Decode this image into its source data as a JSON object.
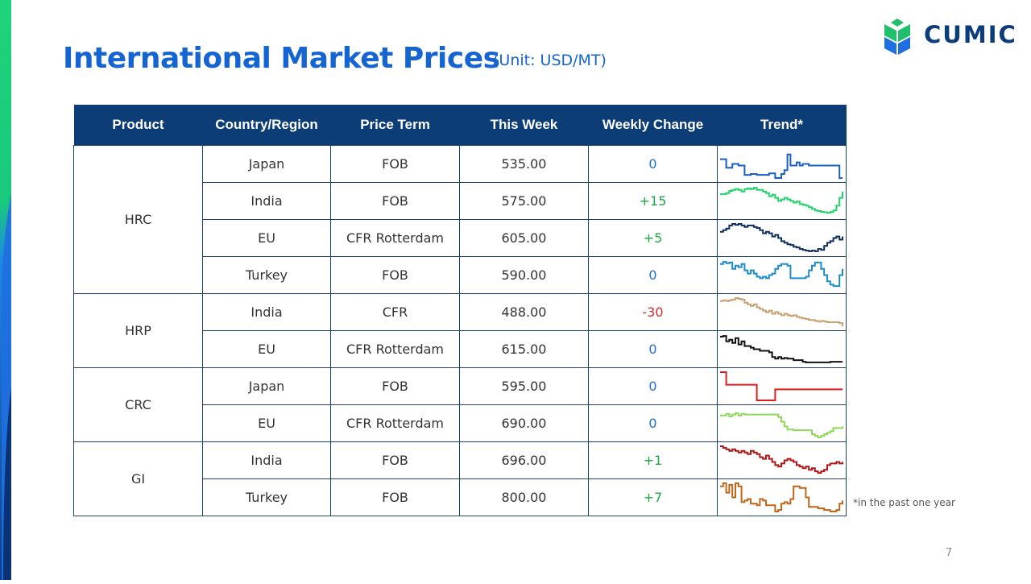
{
  "slide": {
    "title": "International Market Prices",
    "unit": "(Unit: USD/MT)",
    "brand": "CUMIC",
    "footnote": "*in the past one year",
    "page_number": "7"
  },
  "table": {
    "headers": [
      "Product",
      "Country/Region",
      "Price Term",
      "This Week",
      "Weekly Change",
      "Trend*"
    ],
    "groups": [
      {
        "product": "HRC",
        "rows": [
          {
            "country": "Japan",
            "term": "FOB",
            "price": "535.00",
            "change": "0",
            "color": "#1a5fc8",
            "trend": [
              0.35,
              0.35,
              0.62,
              0.62,
              0.5,
              0.5,
              0.55,
              0.55,
              0.85,
              0.85,
              0.82,
              0.82,
              0.85,
              0.85,
              0.85,
              0.85,
              0.8,
              0.8,
              0.95,
              0.95,
              0.82,
              0.7,
              0.2,
              0.55,
              0.55,
              0.45,
              0.55,
              0.5,
              0.5,
              0.55,
              0.55,
              0.55,
              0.55,
              0.55,
              0.55,
              0.55,
              0.55,
              0.55,
              0.55,
              0.95,
              0.95
            ]
          },
          {
            "country": "India",
            "term": "FOB",
            "price": "575.00",
            "change": "+15",
            "color": "#1fd468",
            "trend": [
              0.28,
              0.28,
              0.25,
              0.18,
              0.15,
              0.12,
              0.15,
              0.2,
              0.12,
              0.1,
              0.12,
              0.08,
              0.15,
              0.15,
              0.2,
              0.25,
              0.35,
              0.3,
              0.4,
              0.5,
              0.45,
              0.4,
              0.45,
              0.5,
              0.55,
              0.52,
              0.6,
              0.62,
              0.65,
              0.7,
              0.75,
              0.8,
              0.82,
              0.85,
              0.86,
              0.88,
              0.85,
              0.8,
              0.65,
              0.4,
              0.2
            ]
          },
          {
            "country": "EU",
            "term": "CFR Rotterdam",
            "price": "605.00",
            "change": "+5",
            "color": "#0e2d5c",
            "trend": [
              0.3,
              0.25,
              0.2,
              0.1,
              0.05,
              0.08,
              0.05,
              0.1,
              0.15,
              0.1,
              0.1,
              0.15,
              0.18,
              0.25,
              0.35,
              0.3,
              0.35,
              0.45,
              0.4,
              0.5,
              0.6,
              0.65,
              0.7,
              0.72,
              0.78,
              0.8,
              0.85,
              0.88,
              0.9,
              0.92,
              0.9,
              0.92,
              0.85,
              0.88,
              0.75,
              0.65,
              0.6,
              0.5,
              0.45,
              0.55,
              0.45
            ]
          },
          {
            "country": "Turkey",
            "term": "FOB",
            "price": "590.00",
            "change": "0",
            "color": "#1b8ccc",
            "trend": [
              0.15,
              0.08,
              0.12,
              0.1,
              0.3,
              0.2,
              0.25,
              0.15,
              0.35,
              0.45,
              0.35,
              0.45,
              0.55,
              0.6,
              0.55,
              0.6,
              0.5,
              0.45,
              0.3,
              0.2,
              0.15,
              0.15,
              0.2,
              0.6,
              0.6,
              0.6,
              0.6,
              0.6,
              0.55,
              0.35,
              0.2,
              0.1,
              0.1,
              0.3,
              0.5,
              0.7,
              0.8,
              0.85,
              0.85,
              0.5,
              0.3
            ]
          }
        ]
      },
      {
        "product": "HRP",
        "rows": [
          {
            "country": "India",
            "term": "CFR",
            "price": "488.00",
            "change": "-30",
            "color": "#c9a070",
            "trend": [
              0.15,
              0.12,
              0.15,
              0.12,
              0.1,
              0.05,
              0.08,
              0.1,
              0.2,
              0.25,
              0.3,
              0.25,
              0.35,
              0.4,
              0.45,
              0.5,
              0.45,
              0.55,
              0.5,
              0.55,
              0.6,
              0.55,
              0.6,
              0.62,
              0.6,
              0.65,
              0.68,
              0.7,
              0.72,
              0.75,
              0.75,
              0.78,
              0.8,
              0.78,
              0.8,
              0.82,
              0.82,
              0.82,
              0.82,
              0.85,
              0.95
            ]
          },
          {
            "country": "EU",
            "term": "CFR Rotterdam",
            "price": "615.00",
            "change": "0",
            "color": "#111111",
            "trend": [
              0.1,
              0.08,
              0.25,
              0.2,
              0.3,
              0.15,
              0.35,
              0.25,
              0.4,
              0.4,
              0.45,
              0.5,
              0.5,
              0.55,
              0.55,
              0.55,
              0.6,
              0.75,
              0.8,
              0.75,
              0.8,
              0.78,
              0.8,
              0.8,
              0.85,
              0.85,
              0.85,
              0.9,
              0.92,
              0.92,
              0.92,
              0.92,
              0.92,
              0.92,
              0.92,
              0.92,
              0.9,
              0.9,
              0.9,
              0.9,
              0.9
            ]
          }
        ]
      },
      {
        "product": "CRC",
        "rows": [
          {
            "country": "Japan",
            "term": "FOB",
            "price": "595.00",
            "change": "0",
            "color": "#e01c1c",
            "trend": [
              0.05,
              0.05,
              0.45,
              0.45,
              0.45,
              0.45,
              0.45,
              0.45,
              0.45,
              0.45,
              0.45,
              0.45,
              0.95,
              0.95,
              0.95,
              0.95,
              0.95,
              0.95,
              0.6,
              0.6,
              0.6,
              0.6,
              0.6,
              0.6,
              0.6,
              0.6,
              0.6,
              0.6,
              0.6,
              0.6,
              0.6,
              0.6,
              0.6,
              0.6,
              0.6,
              0.6,
              0.6,
              0.6,
              0.6,
              0.6,
              0.6
            ]
          },
          {
            "country": "EU",
            "term": "CFR Rotterdam",
            "price": "690.00",
            "change": "0",
            "color": "#8ed85a",
            "trend": [
              0.25,
              0.25,
              0.2,
              0.28,
              0.22,
              0.18,
              0.25,
              0.2,
              0.22,
              0.22,
              0.22,
              0.22,
              0.22,
              0.22,
              0.22,
              0.22,
              0.22,
              0.22,
              0.22,
              0.3,
              0.45,
              0.6,
              0.7,
              0.7,
              0.72,
              0.72,
              0.72,
              0.72,
              0.72,
              0.72,
              0.85,
              0.9,
              0.95,
              0.9,
              0.85,
              0.8,
              0.75,
              0.65,
              0.65,
              0.65,
              0.6
            ]
          }
        ]
      },
      {
        "product": "GI",
        "rows": [
          {
            "country": "India",
            "term": "FOB",
            "price": "696.00",
            "change": "+1",
            "color": "#b01515",
            "trend": [
              0.05,
              0.1,
              0.15,
              0.2,
              0.15,
              0.2,
              0.25,
              0.2,
              0.25,
              0.3,
              0.2,
              0.25,
              0.3,
              0.4,
              0.45,
              0.35,
              0.45,
              0.55,
              0.65,
              0.7,
              0.6,
              0.5,
              0.45,
              0.5,
              0.55,
              0.65,
              0.7,
              0.75,
              0.7,
              0.8,
              0.75,
              0.85,
              0.9,
              0.85,
              0.8,
              0.65,
              0.6,
              0.6,
              0.55,
              0.6,
              0.55
            ]
          },
          {
            "country": "Turkey",
            "term": "FOB",
            "price": "800.00",
            "change": "+7",
            "color": "#c0661a",
            "trend": [
              0.15,
              0.05,
              0.35,
              0.1,
              0.5,
              0.05,
              0.15,
              0.65,
              0.6,
              0.55,
              0.7,
              0.7,
              0.75,
              0.55,
              0.6,
              0.75,
              0.75,
              0.75,
              0.95,
              0.9,
              0.7,
              0.65,
              0.7,
              0.55,
              0.15,
              0.15,
              0.2,
              0.2,
              0.5,
              0.8,
              0.8,
              0.8,
              0.85,
              0.85,
              0.9,
              0.9,
              0.95,
              0.95,
              0.9,
              0.7,
              0.6
            ]
          }
        ]
      }
    ]
  }
}
